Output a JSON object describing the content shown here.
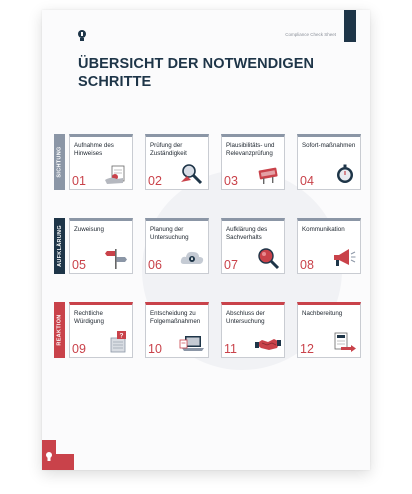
{
  "header": {
    "doc_label": "Compliance Check Sheet"
  },
  "title": {
    "line1": "ÜBERSICHT DER NOTWENDIGEN",
    "line2": "SCHRITTE"
  },
  "sections": [
    {
      "phase": "SICHTUNG",
      "color": "#8b96a6",
      "steps": [
        {
          "label": "Aufnahme des Hinweises",
          "num": "01",
          "icon": "hand-document-icon"
        },
        {
          "label": "Prüfung der Zuständigkeit",
          "num": "02",
          "icon": "magnifier-icon"
        },
        {
          "label": "Plausibilitäts- und Relevanzprüfung",
          "num": "03",
          "icon": "faq-sign-icon"
        },
        {
          "label": "Sofort-maßnahmen",
          "num": "04",
          "icon": "stopwatch-icon"
        }
      ]
    },
    {
      "phase": "AUFKLÄRUNG",
      "color": "#1e3548",
      "steps": [
        {
          "label": "Zuweisung",
          "num": "05",
          "icon": "signpost-icon"
        },
        {
          "label": "Planung der Untersuchung",
          "num": "06",
          "icon": "cloud-icon"
        },
        {
          "label": "Aufklärung des Sachverhalts",
          "num": "07",
          "icon": "magnifier-icon"
        },
        {
          "label": "Kommunikation",
          "num": "08",
          "icon": "megaphone-icon"
        }
      ]
    },
    {
      "phase": "REAKTION",
      "color": "#c9424a",
      "steps": [
        {
          "label": "Rechtliche Würdigung",
          "num": "09",
          "icon": "paragraph-question-icon"
        },
        {
          "label": "Entscheidung zu Folgemaßnahmen",
          "num": "10",
          "icon": "laptop-icon"
        },
        {
          "label": "Abschluss der Untersuchung",
          "num": "11",
          "icon": "handshake-icon"
        },
        {
          "label": "Nachbereitung",
          "num": "12",
          "icon": "document-arrow-icon"
        }
      ]
    }
  ]
}
